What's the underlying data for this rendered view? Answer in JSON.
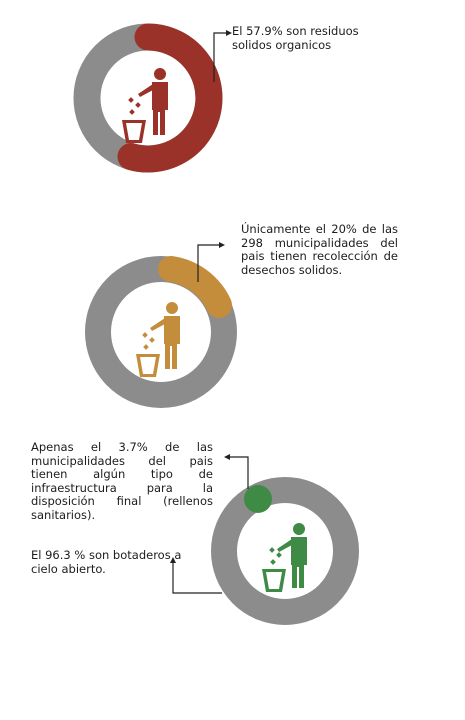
{
  "colors": {
    "ring": "#8c8c8c",
    "red": "#9a3229",
    "gold": "#c48d3c",
    "green": "#3f8a45",
    "connector": "#222222"
  },
  "icons": {
    "trash": "person-throwing-trash-icon"
  },
  "section1": {
    "percent_segment": 57.9,
    "text": "El 57.9%  son residuos solidos organicos"
  },
  "section2": {
    "percent_segment": 20,
    "text": "Únicamente el 20% de las 298 municipalidades del pais tienen recolección de desechos solidos."
  },
  "section3": {
    "percent_segment": 3.7,
    "text_top": "Apenas el 3.7%  de las municipalidades del pais tienen algún tipo de infraestructura para la disposición final (rellenos sanitarios).",
    "text_bottom": "El 96.3 % son botaderos a cielo abierto."
  }
}
